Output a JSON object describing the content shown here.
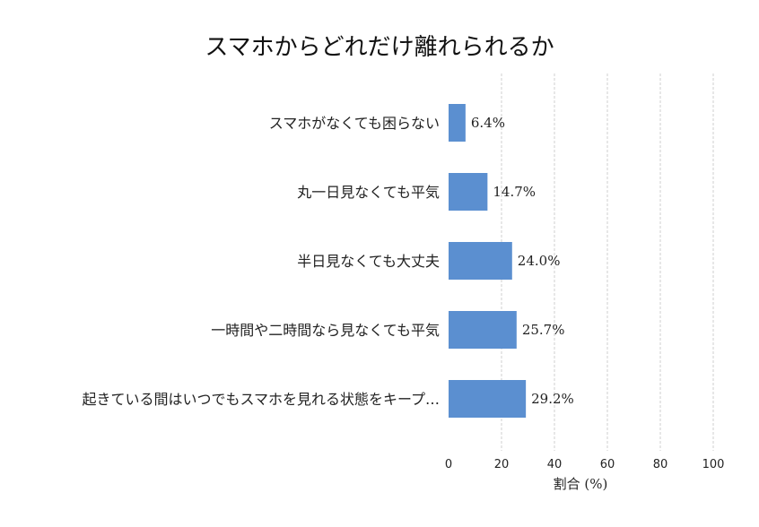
{
  "chart_data": {
    "type": "bar",
    "orientation": "horizontal",
    "title": "スマホからどれだけ離れられるか",
    "xlabel": "割合 (%)",
    "ylabel": "",
    "xlim": [
      0,
      100
    ],
    "xticks": [
      0,
      20,
      40,
      60,
      80,
      100
    ],
    "grid": "vertical-dashed",
    "bar_color": "#5b8fd0",
    "categories": [
      "スマホがなくても困らない",
      "丸一日見なくても平気",
      "半日見なくても大丈夫",
      "一時間や二時間なら見なくても平気",
      "起きている間はいつでもスマホを見れる状態をキープ…"
    ],
    "values": [
      6.4,
      14.7,
      24.0,
      25.7,
      29.2
    ],
    "value_labels": [
      "6.4%",
      "14.7%",
      "24.0%",
      "25.7%",
      "29.2%"
    ]
  }
}
